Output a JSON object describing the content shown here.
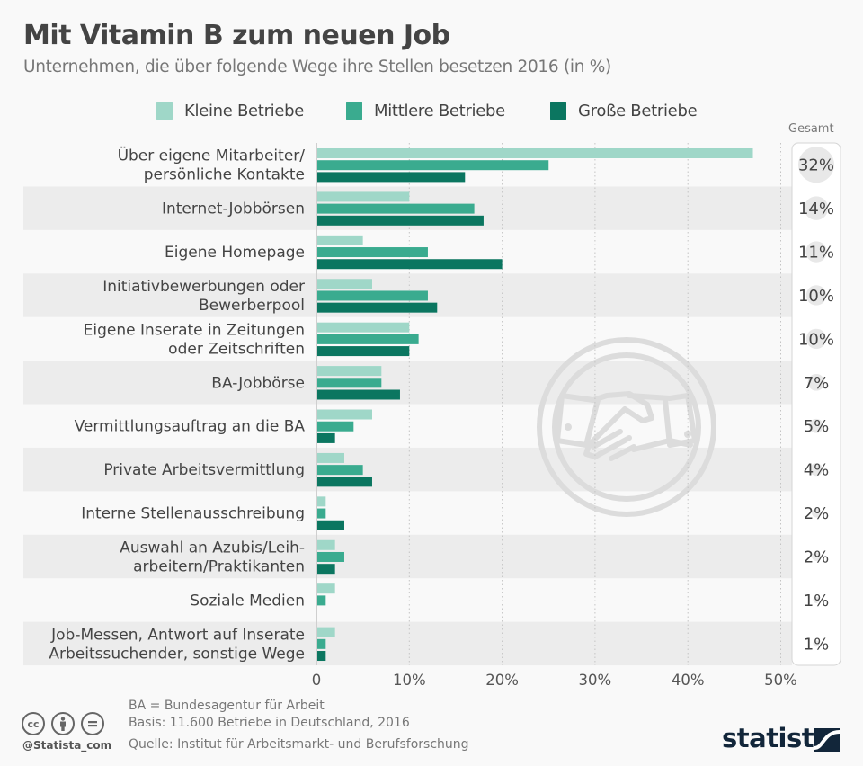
{
  "header": {
    "title": "Mit Vitamin B zum neuen Job",
    "subtitle": "Unternehmen, die über folgende Wege ihre Stellen besetzen 2016 (in %)"
  },
  "colors": {
    "kleine": "#9fd7c8",
    "mittlere": "#3aab8f",
    "grosse": "#0b7660",
    "stripe": "#ececec",
    "background": "#f9f9f9",
    "brand": "#12263a"
  },
  "legend": [
    {
      "label": "Kleine Betriebe",
      "color": "#9fd7c8"
    },
    {
      "label": "Mittlere Betriebe",
      "color": "#3aab8f"
    },
    {
      "label": "Große Betriebe",
      "color": "#0b7660"
    }
  ],
  "gesamt_label": "Gesamt",
  "chart_data": {
    "type": "bar",
    "orientation": "horizontal",
    "title": "Mit Vitamin B zum neuen Job",
    "subtitle": "Unternehmen, die über folgende Wege ihre Stellen besetzen 2016 (in %)",
    "xlabel": "",
    "ylabel": "",
    "xlim": [
      0,
      50
    ],
    "xticks": [
      0,
      10,
      20,
      30,
      40,
      50
    ],
    "xtick_labels": [
      "0",
      "10%",
      "20%",
      "30%",
      "40%",
      "50%"
    ],
    "grid": true,
    "legend_position": "top-center",
    "categories": [
      [
        "Über eigene Mitarbeiter/",
        "persönliche Kontakte"
      ],
      [
        "Internet-Jobbörsen"
      ],
      [
        "Eigene Homepage"
      ],
      [
        "Initiativbewerbungen oder",
        "Bewerberpool"
      ],
      [
        "Eigene Inserate in Zeitungen",
        "oder Zeitschriften"
      ],
      [
        "BA-Jobbörse"
      ],
      [
        "Vermittlungsauftrag an die BA"
      ],
      [
        "Private Arbeitsvermittlung"
      ],
      [
        "Interne Stellenausschreibung"
      ],
      [
        "Auswahl an Azubis/Leih-",
        "arbeitern/Praktikanten"
      ],
      [
        "Soziale Medien"
      ],
      [
        "Job-Messen, Antwort auf Inserate",
        "Arbeitssuchender, sonstige Wege"
      ]
    ],
    "series": [
      {
        "name": "Kleine Betriebe",
        "color": "#9fd7c8",
        "values": [
          47,
          10,
          5,
          6,
          10,
          7,
          6,
          3,
          1,
          2,
          2,
          2
        ]
      },
      {
        "name": "Mittlere Betriebe",
        "color": "#3aab8f",
        "values": [
          25,
          17,
          12,
          12,
          11,
          7,
          4,
          5,
          1,
          3,
          1,
          1
        ]
      },
      {
        "name": "Große Betriebe",
        "color": "#0b7660",
        "values": [
          16,
          18,
          20,
          13,
          10,
          9,
          2,
          6,
          3,
          2,
          0,
          1
        ]
      }
    ],
    "gesamt": {
      "label": "Gesamt",
      "values": [
        32,
        14,
        11,
        10,
        10,
        7,
        5,
        4,
        2,
        2,
        1,
        1
      ],
      "labels": [
        "32%",
        "14%",
        "11%",
        "10%",
        "10%",
        "7%",
        "5%",
        "4%",
        "2%",
        "2%",
        "1%",
        "1%"
      ]
    }
  },
  "footer": {
    "note": "BA = Bundesagentur für Arbeit",
    "basis": "Basis: 11.600 Betriebe in Deutschland, 2016",
    "source": "Quelle: Institut für Arbeitsmarkt- und Berufsforschung",
    "handle": "@Statista_com",
    "brand": "statista",
    "license_icons": [
      "cc-icon",
      "by-icon",
      "nd-icon"
    ]
  }
}
